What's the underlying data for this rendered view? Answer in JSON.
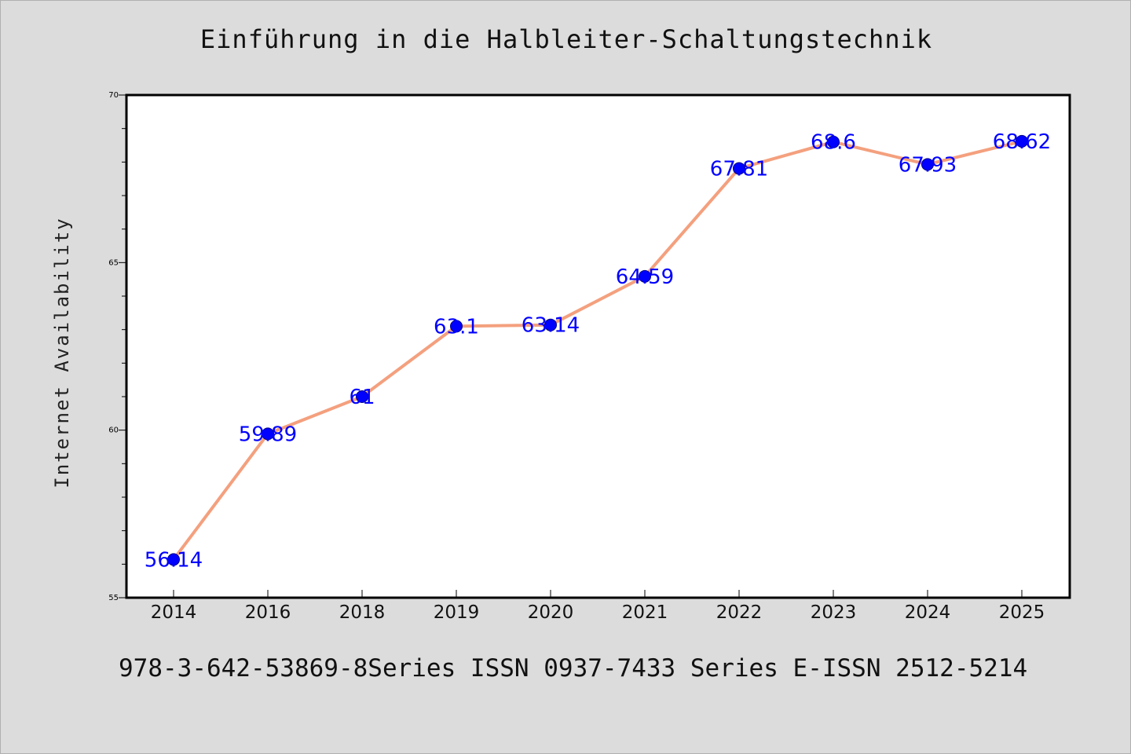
{
  "chart_data": {
    "type": "line",
    "title": "Einführung in die Halbleiter-Schaltungstechnik",
    "xlabel": "",
    "ylabel": "Internet Availability",
    "categories": [
      "2014",
      "2016",
      "2018",
      "2019",
      "2020",
      "2021",
      "2022",
      "2023",
      "2024",
      "2025"
    ],
    "series": [
      {
        "values": [
          56.14,
          59.89,
          61,
          63.1,
          63.14,
          64.59,
          67.81,
          68.6,
          67.93,
          68.62
        ],
        "data_labels": [
          "56.14",
          "59.89",
          "61",
          "63.1",
          "63.14",
          "64.59",
          "67.81",
          "68.6",
          "67.93",
          "68.62"
        ]
      }
    ],
    "ylim": [
      55,
      70
    ],
    "yticks": [
      "55",
      "60",
      "65",
      "70"
    ],
    "grid": false,
    "legend": "none",
    "colors": {
      "line": "#f4a07e",
      "marker": "#0000ff",
      "label": "#0000ff",
      "background": "#dcdcdc",
      "plot_background": "#ffffff"
    }
  },
  "footer": {
    "text": "978-3-642-53869-8Series ISSN 0937-7433 Series E-ISSN 2512-5214"
  }
}
